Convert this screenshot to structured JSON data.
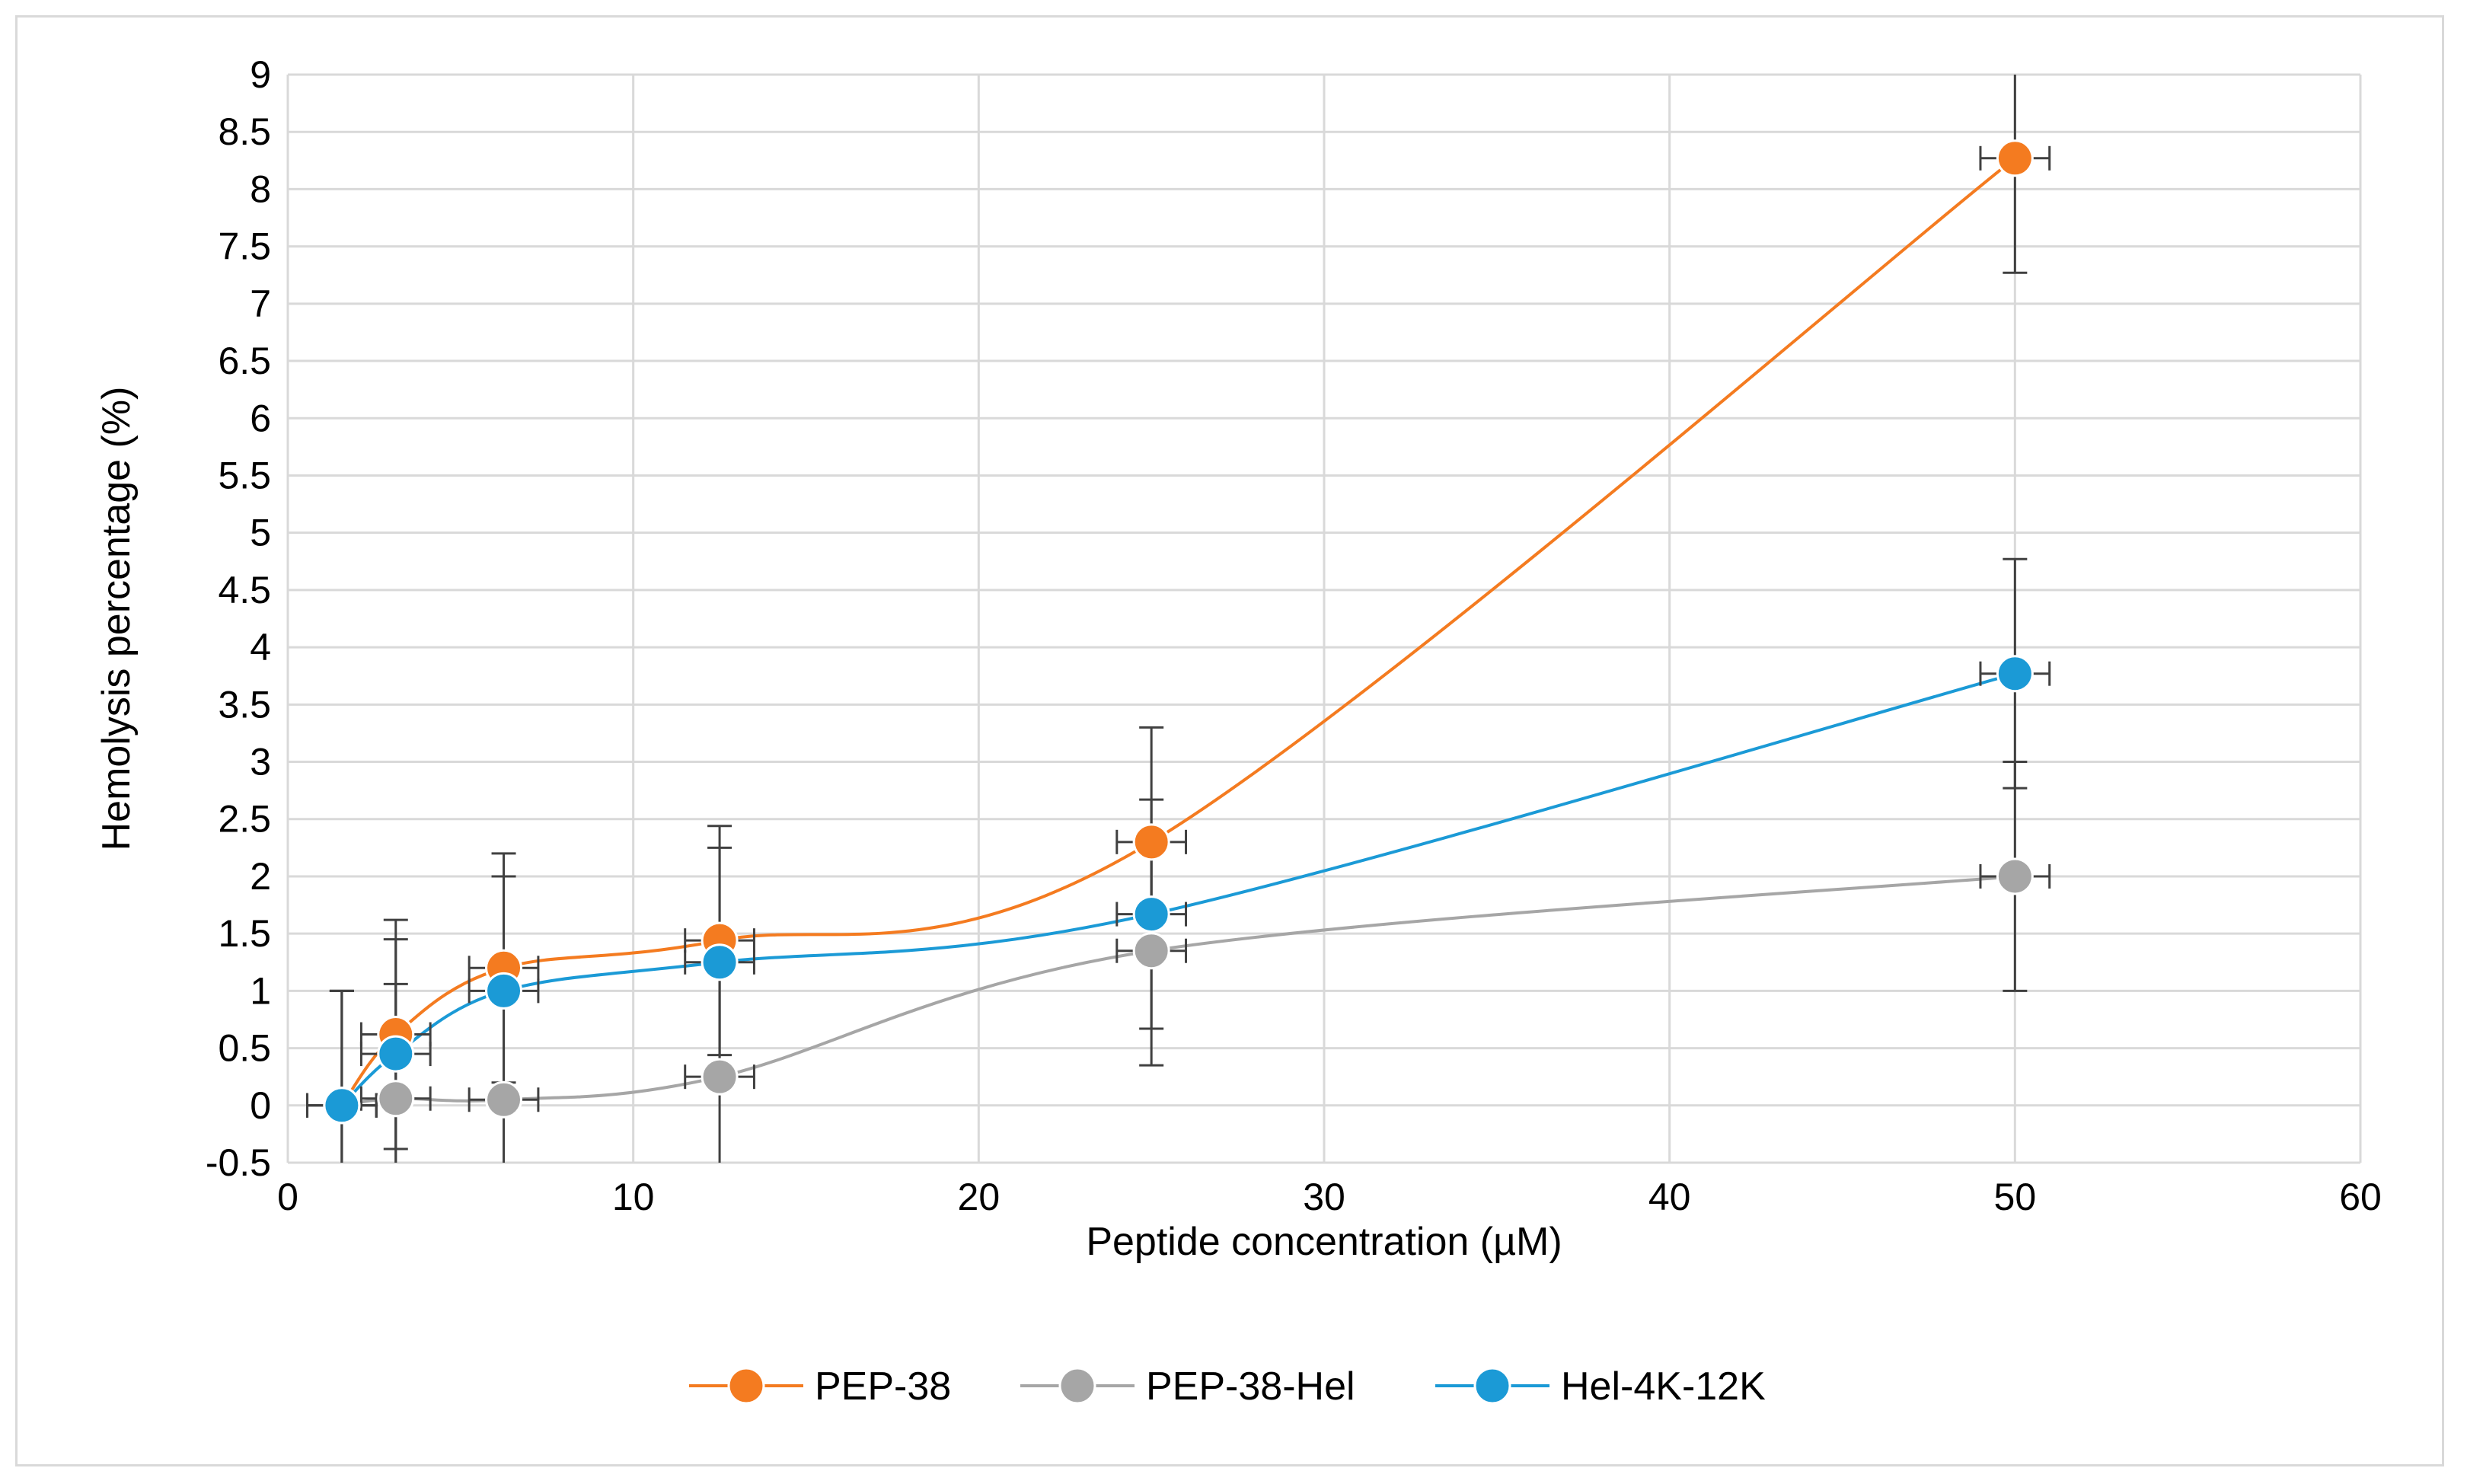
{
  "chart_data": {
    "type": "scatter",
    "title": "",
    "xlabel": "Peptide concentration (µM)",
    "ylabel": "Hemolysis percentage (%)",
    "xlim": [
      0,
      60
    ],
    "ylim": [
      -0.5,
      9
    ],
    "x_ticks": [
      "0",
      "10",
      "20",
      "30",
      "40",
      "50",
      "60"
    ],
    "y_ticks": [
      "-0.5",
      "0",
      "0.5",
      "1",
      "1.5",
      "2",
      "2.5",
      "3",
      "3.5",
      "4",
      "4.5",
      "5",
      "5.5",
      "6",
      "6.5",
      "7",
      "7.5",
      "8",
      "8.5",
      "9"
    ],
    "grid": true,
    "smoothed_lines": true,
    "legend_position": "bottom",
    "series": [
      {
        "name": "PEP-38",
        "color": "#F47B20",
        "x": [
          1.5625,
          3.125,
          6.25,
          12.5,
          25,
          50
        ],
        "y": [
          0.0,
          0.62,
          1.2,
          1.44,
          2.3,
          8.27
        ],
        "y_error": [
          1.0,
          1.0,
          1.0,
          1.0,
          1.0,
          1.0
        ],
        "x_error": [
          1.0,
          1.0,
          1.0,
          1.0,
          1.0,
          1.0
        ]
      },
      {
        "name": "PEP-38-Hel",
        "color": "#A6A6A6",
        "x": [
          1.5625,
          3.125,
          6.25,
          12.5,
          25,
          50
        ],
        "y": [
          0.0,
          0.06,
          0.05,
          0.25,
          1.35,
          2.0
        ],
        "y_error": [
          1.0,
          1.0,
          1.0,
          1.0,
          1.0,
          1.0
        ],
        "x_error": [
          1.0,
          1.0,
          1.0,
          1.0,
          1.0,
          1.0
        ]
      },
      {
        "name": "Hel-4K-12K",
        "color": "#1B9AD6",
        "x": [
          1.5625,
          3.125,
          6.25,
          12.5,
          25,
          50
        ],
        "y": [
          0.0,
          0.45,
          1.0,
          1.25,
          1.67,
          3.77
        ],
        "y_error": [
          1.0,
          1.0,
          1.0,
          1.0,
          1.0,
          1.0
        ],
        "x_error": [
          1.0,
          1.0,
          1.0,
          1.0,
          1.0,
          1.0
        ]
      }
    ]
  }
}
